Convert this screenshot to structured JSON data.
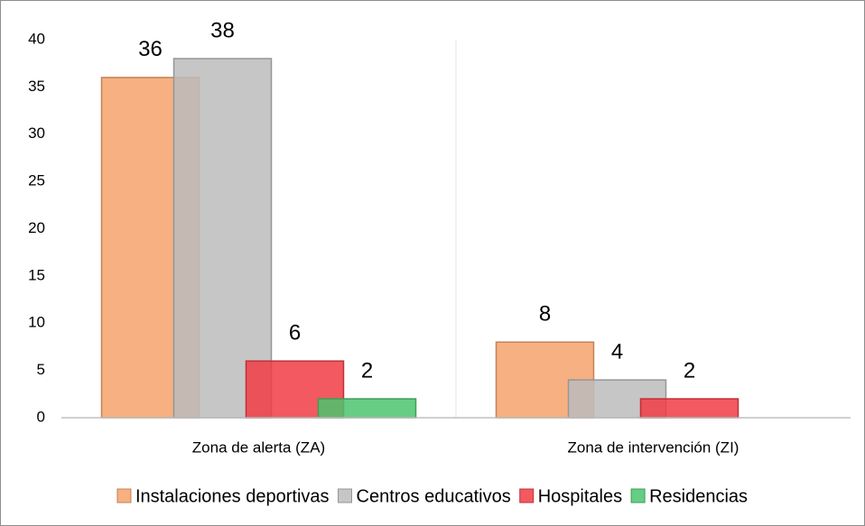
{
  "chart_data": {
    "type": "bar",
    "categories": [
      "Zona de alerta (ZA)",
      "Zona de intervención (ZI)"
    ],
    "series": [
      {
        "name": "Instalaciones deportivas",
        "color": "#f4a26b",
        "values": [
          36,
          8
        ]
      },
      {
        "name": "Centros educativos",
        "color": "#bcbcbc",
        "values": [
          38,
          4
        ]
      },
      {
        "name": "Hospitales",
        "color": "#f03c44",
        "values": [
          6,
          2
        ]
      },
      {
        "name": "Residencias",
        "color": "#4cc46e",
        "values": [
          2,
          null
        ]
      }
    ],
    "ylim": [
      0,
      40
    ],
    "yticks": [
      0,
      5,
      10,
      15,
      20,
      25,
      30,
      35,
      40
    ],
    "grid": false,
    "legend": "bottom"
  }
}
